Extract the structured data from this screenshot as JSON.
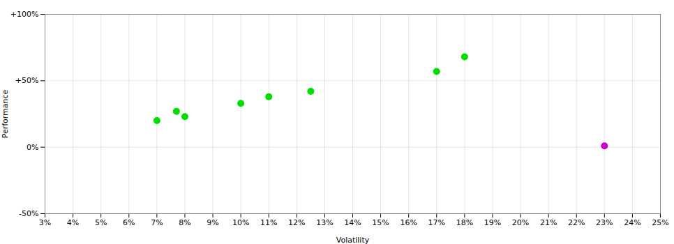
{
  "chart_data": {
    "type": "scatter",
    "xlabel": "Volatility",
    "ylabel": "Performance",
    "series": [
      {
        "color": "#00dd00",
        "x": [
          0.07,
          0.077,
          0.08,
          0.1,
          0.11,
          0.125,
          0.17,
          0.18
        ],
        "values": [
          0.2,
          0.27,
          0.23,
          0.33,
          0.38,
          0.42,
          0.57,
          0.68
        ]
      },
      {
        "color": "#cc00cc",
        "x": [
          0.23
        ],
        "values": [
          0.01
        ]
      }
    ],
    "xlim": [
      0.03,
      0.25
    ],
    "ylim": [
      -0.5,
      1.0
    ],
    "xticks": [
      {
        "value": 0.03,
        "label": "3%"
      },
      {
        "value": 0.04,
        "label": "4%"
      },
      {
        "value": 0.05,
        "label": "5%"
      },
      {
        "value": 0.06,
        "label": "6%"
      },
      {
        "value": 0.07,
        "label": "7%"
      },
      {
        "value": 0.08,
        "label": "8%"
      },
      {
        "value": 0.09,
        "label": "9%"
      },
      {
        "value": 0.1,
        "label": "10%"
      },
      {
        "value": 0.11,
        "label": "11%"
      },
      {
        "value": 0.12,
        "label": "12%"
      },
      {
        "value": 0.13,
        "label": "13%"
      },
      {
        "value": 0.14,
        "label": "14%"
      },
      {
        "value": 0.15,
        "label": "15%"
      },
      {
        "value": 0.16,
        "label": "16%"
      },
      {
        "value": 0.17,
        "label": "17%"
      },
      {
        "value": 0.18,
        "label": "18%"
      },
      {
        "value": 0.19,
        "label": "19%"
      },
      {
        "value": 0.2,
        "label": "20%"
      },
      {
        "value": 0.21,
        "label": "21%"
      },
      {
        "value": 0.22,
        "label": "22%"
      },
      {
        "value": 0.23,
        "label": "23%"
      },
      {
        "value": 0.24,
        "label": "24%"
      },
      {
        "value": 0.25,
        "label": "25%"
      }
    ],
    "yticks": [
      {
        "value": -0.5,
        "label": "-50%"
      },
      {
        "value": 0.0,
        "label": "0%"
      },
      {
        "value": 0.5,
        "label": "+50%"
      },
      {
        "value": 1.0,
        "label": "+100%"
      }
    ],
    "grid": true
  }
}
